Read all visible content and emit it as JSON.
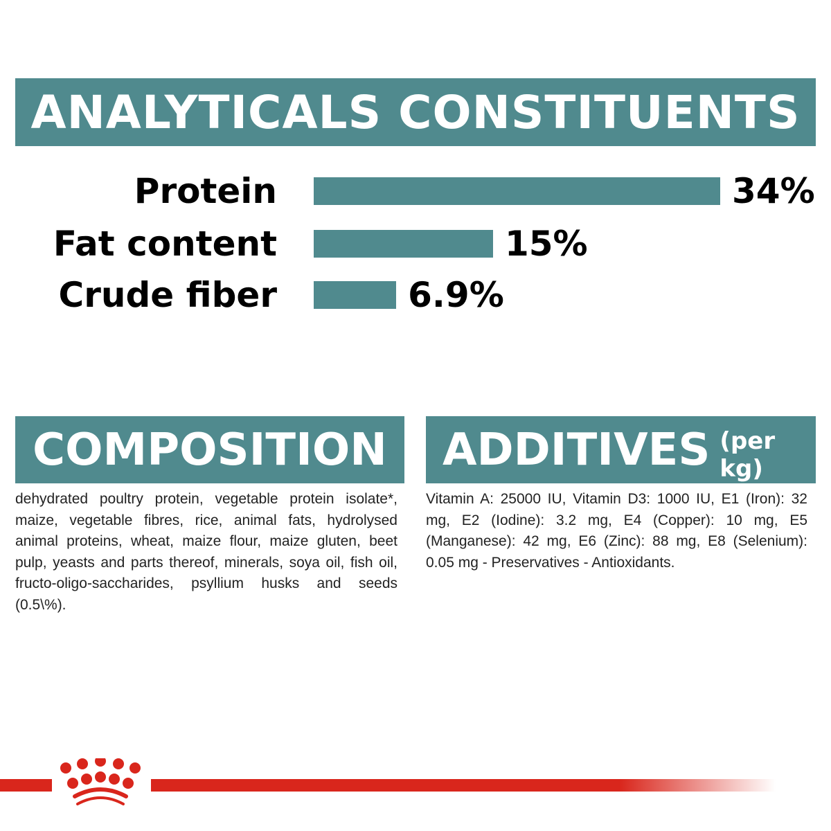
{
  "header": {
    "title": "ANALYTICALS CONSTITUENTS"
  },
  "chart_data": {
    "type": "bar",
    "orientation": "horizontal",
    "categories": [
      "Protein",
      "Fat content",
      "Crude fiber"
    ],
    "values": [
      34,
      15,
      6.9
    ],
    "value_labels": [
      "34%",
      "15%",
      "6.9%"
    ],
    "unit": "%",
    "bar_color": "#508a8e",
    "grid": false
  },
  "composition": {
    "title": "COMPOSITION",
    "text": "dehydrated poultry protein, vegetable protein isolate*, maize, vegetable fibres, rice, animal fats, hydrolysed animal proteins, wheat, maize flour, maize gluten, beet pulp, yeasts and parts thereof, minerals, soya oil, fish oil, fructo-oligo-saccharides, psyllium husks and seeds (0.5\\%)."
  },
  "additives": {
    "title": "ADDITIVES",
    "subtitle": "(per kg)",
    "text": "Vitamin A: 25000 IU, Vitamin D3: 1000 IU, E1 (Iron): 32 mg, E2 (Iodine): 3.2 mg, E4 (Copper): 10 mg, E5 (Manganese): 42 mg, E6 (Zinc): 88 mg, E8 (Selenium): 0.05 mg - Preservatives - Antioxidants."
  },
  "colors": {
    "accent": "#508a8e",
    "brand_red": "#d9261c"
  },
  "footer": {
    "logo_icon": "royal-canin-crown-icon"
  }
}
